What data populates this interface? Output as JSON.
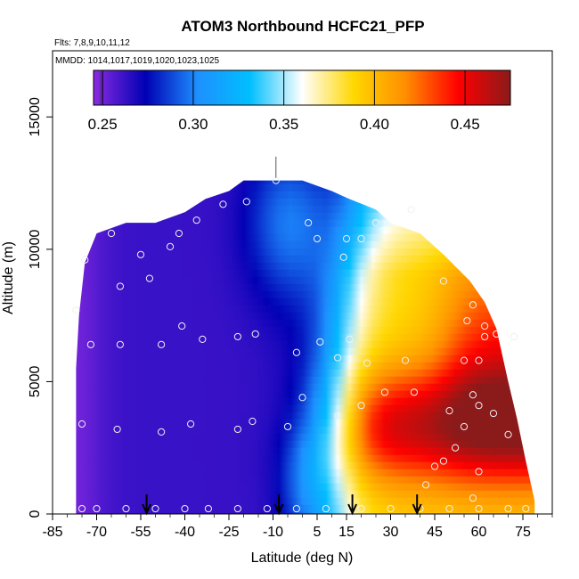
{
  "chart_data": {
    "type": "heatmap",
    "title": "ATOM3 Northbound HCFC21_PFP",
    "flights_note": "Flts: 7,8,9,10,11,12",
    "dates_note": "MMDD: 1014,1017,1019,1020,1023,1025",
    "xlabel": "Latitude (deg N)",
    "ylabel": "Altitude (m)",
    "xlim": [
      -85,
      85
    ],
    "ylim": [
      0,
      17500
    ],
    "x_ticks": [
      -85,
      -70,
      -55,
      -40,
      -25,
      -10,
      5,
      15,
      30,
      45,
      60,
      75
    ],
    "y_ticks": [
      0,
      5000,
      10000,
      15000
    ],
    "colorbar": {
      "range": [
        0.245,
        0.475
      ],
      "ticks": [
        0.25,
        0.3,
        0.35,
        0.4,
        0.45
      ],
      "tick_labels": [
        "0.25",
        "0.30",
        "0.35",
        "0.40",
        "0.45"
      ],
      "colors": [
        "#8a2be2",
        "#0000b4",
        "#1e90ff",
        "#00bfff",
        "#ffffff",
        "#ffd700",
        "#ff8c00",
        "#ff0000",
        "#8b1a1a"
      ]
    },
    "coverage_envelope": [
      [
        -77,
        2500
      ],
      [
        -77,
        5500
      ],
      [
        -76,
        7500
      ],
      [
        -74,
        9500
      ],
      [
        -70,
        10600
      ],
      [
        -60,
        11000
      ],
      [
        -50,
        11000
      ],
      [
        -40,
        11400
      ],
      [
        -33,
        11900
      ],
      [
        -25,
        12200
      ],
      [
        -20,
        12600
      ],
      [
        -10,
        12600
      ],
      [
        0,
        12600
      ],
      [
        10,
        12200
      ],
      [
        16,
        11900
      ],
      [
        25,
        11500
      ],
      [
        30,
        11000
      ],
      [
        40,
        10600
      ],
      [
        48,
        9800
      ],
      [
        57,
        8800
      ],
      [
        62,
        8000
      ],
      [
        66,
        7000
      ],
      [
        68,
        6000
      ],
      [
        70,
        5000
      ],
      [
        73,
        3600
      ],
      [
        76,
        2000
      ],
      [
        79,
        500
      ],
      [
        79,
        0
      ],
      [
        -77,
        0
      ]
    ],
    "sample_points": [
      [
        -75,
        200
      ],
      [
        -70,
        200
      ],
      [
        -60,
        200
      ],
      [
        -50,
        200
      ],
      [
        -40,
        200
      ],
      [
        -32,
        200
      ],
      [
        -22,
        200
      ],
      [
        -12,
        200
      ],
      [
        -2,
        200
      ],
      [
        8,
        200
      ],
      [
        20,
        200
      ],
      [
        30,
        200
      ],
      [
        40,
        200
      ],
      [
        50,
        200
      ],
      [
        60,
        200
      ],
      [
        70,
        200
      ],
      [
        76,
        200
      ],
      [
        -75,
        3400
      ],
      [
        -63,
        3200
      ],
      [
        -48,
        3100
      ],
      [
        -38,
        3400
      ],
      [
        -22,
        3200
      ],
      [
        -17,
        3500
      ],
      [
        -5,
        3300
      ],
      [
        12,
        3700
      ],
      [
        20,
        4100
      ],
      [
        50,
        3900
      ],
      [
        55,
        3300
      ],
      [
        60,
        4100
      ],
      [
        65,
        3800
      ],
      [
        70,
        3000
      ],
      [
        58,
        600
      ],
      [
        60,
        1600
      ],
      [
        52,
        2500
      ],
      [
        42,
        1100
      ],
      [
        45,
        1800
      ],
      [
        48,
        2000
      ],
      [
        0,
        4400
      ],
      [
        28,
        4600
      ],
      [
        38,
        4600
      ],
      [
        58,
        4500
      ],
      [
        -62,
        6400
      ],
      [
        -72,
        6400
      ],
      [
        -48,
        6400
      ],
      [
        -41,
        7100
      ],
      [
        -34,
        6600
      ],
      [
        -22,
        6700
      ],
      [
        -16,
        6800
      ],
      [
        -2,
        6100
      ],
      [
        6,
        6500
      ],
      [
        12,
        5900
      ],
      [
        16,
        6600
      ],
      [
        22,
        5700
      ],
      [
        35,
        5800
      ],
      [
        55,
        5800
      ],
      [
        60,
        5800
      ],
      [
        62,
        6700
      ],
      [
        66,
        6800
      ],
      [
        72,
        6700
      ],
      [
        -77,
        7700
      ],
      [
        -62,
        8600
      ],
      [
        -52,
        8900
      ],
      [
        -45,
        10100
      ],
      [
        -65,
        10600
      ],
      [
        -42,
        10600
      ],
      [
        -36,
        11100
      ],
      [
        -27,
        11700
      ],
      [
        -19,
        11800
      ],
      [
        -9,
        12600
      ],
      [
        2,
        11000
      ],
      [
        5,
        10400
      ],
      [
        15,
        10400
      ],
      [
        20,
        10400
      ],
      [
        14,
        9700
      ],
      [
        25,
        11000
      ],
      [
        37,
        11500
      ],
      [
        48,
        8800
      ],
      [
        58,
        7900
      ],
      [
        56,
        7300
      ],
      [
        62,
        7100
      ],
      [
        -74,
        9600
      ],
      [
        -55,
        9800
      ]
    ],
    "flight_arrows_latitude": [
      -53,
      -8,
      17,
      39
    ]
  }
}
